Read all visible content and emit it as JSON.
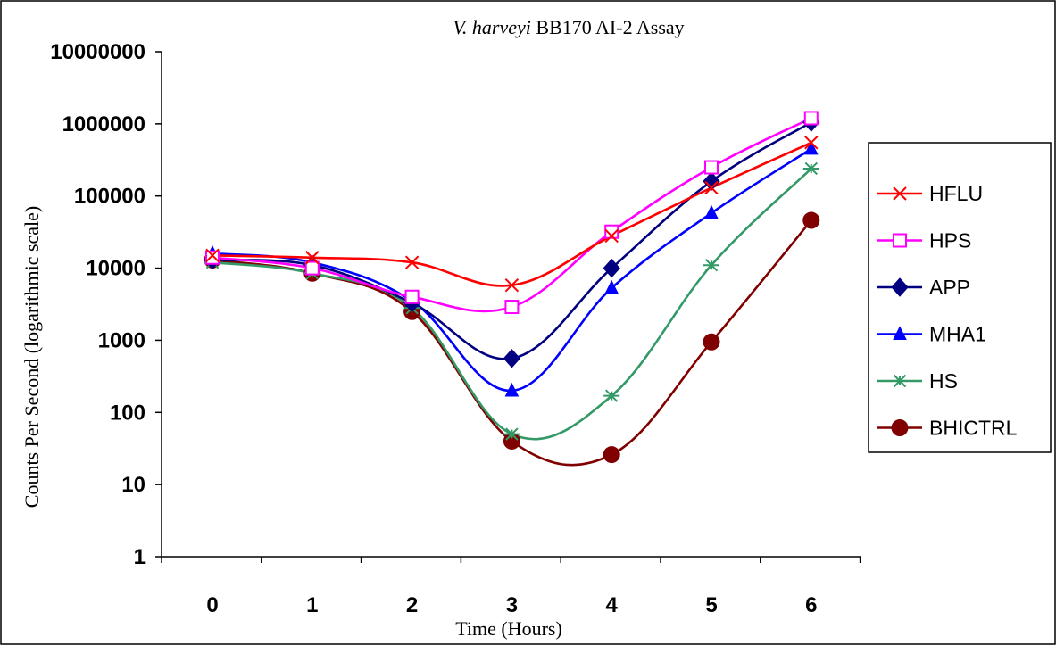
{
  "chart_data": {
    "type": "line",
    "title_italic": "V. harveyi",
    "title_rest": " BB170 AI-2 Assay",
    "xlabel": "Time (Hours)",
    "ylabel": "Counts Per Second (logarithmic scale)",
    "y_scale": "log",
    "ylim": [
      1,
      10000000
    ],
    "y_tick_labels": [
      "1",
      "10",
      "100",
      "1000",
      "10000",
      "100000",
      "1000000",
      "10000000"
    ],
    "categories": [
      "0",
      "1",
      "2",
      "3",
      "4",
      "5",
      "6"
    ],
    "legend_position": "right",
    "grid": false,
    "series": [
      {
        "name": "HFLU",
        "color": "#ff0000",
        "marker": "x",
        "values": [
          15000,
          14000,
          12000,
          5800,
          28000,
          130000,
          550000
        ]
      },
      {
        "name": "HPS",
        "color": "#ff00ff",
        "marker": "square-open",
        "values": [
          14000,
          10000,
          4000,
          2900,
          32000,
          250000,
          1200000
        ]
      },
      {
        "name": "APP",
        "color": "#000080",
        "marker": "diamond",
        "values": [
          13000,
          11000,
          3300,
          560,
          10000,
          160000,
          1050000
        ]
      },
      {
        "name": "MHA1",
        "color": "#0000ff",
        "marker": "triangle",
        "values": [
          16000,
          12000,
          3500,
          200,
          5300,
          58000,
          450000
        ]
      },
      {
        "name": "HS",
        "color": "#339966",
        "marker": "asterisk",
        "values": [
          12000,
          8500,
          2800,
          50,
          170,
          11000,
          240000
        ]
      },
      {
        "name": "BHICTRL",
        "color": "#800000",
        "marker": "circle",
        "values": [
          13000,
          8500,
          2500,
          40,
          26,
          950,
          46000
        ]
      }
    ]
  }
}
